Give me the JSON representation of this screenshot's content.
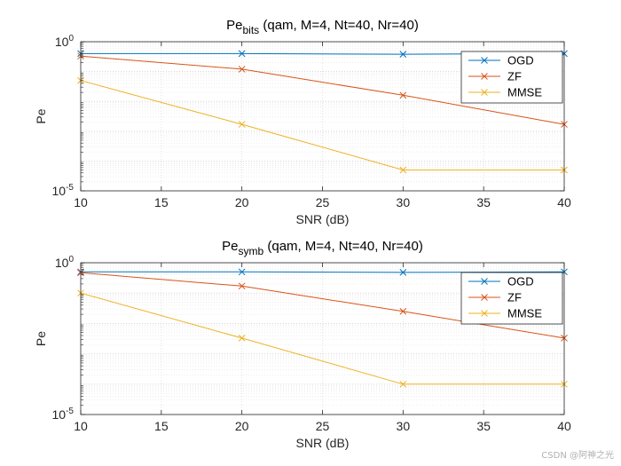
{
  "chart_data": [
    {
      "type": "line",
      "title_main": "Pe",
      "title_sub": "bits",
      "title_rest": "(qam, M=4, Nt=40, Nr=40)",
      "xlabel": "SNR (dB)",
      "ylabel": "Pe",
      "yscale": "log",
      "xlim": [
        10,
        40
      ],
      "ylim_exp": [
        -5,
        0
      ],
      "xticks": [
        "10",
        "15",
        "20",
        "25",
        "30",
        "35",
        "40"
      ],
      "xtick_values": [
        10,
        15,
        20,
        25,
        30,
        35,
        40
      ],
      "yticks": [
        {
          "base": "10",
          "exp": "0"
        },
        {
          "base": "10",
          "exp": "-5"
        }
      ],
      "grid": true,
      "legend_position": "top-right",
      "x": [
        10,
        20,
        30,
        40
      ],
      "series": [
        {
          "name": "OGD",
          "color": "#0072BD",
          "values": [
            0.4,
            0.4,
            0.38,
            0.4
          ]
        },
        {
          "name": "ZF",
          "color": "#D95319",
          "values": [
            0.33,
            0.12,
            0.016,
            0.0017
          ]
        },
        {
          "name": "MMSE",
          "color": "#EDB120",
          "values": [
            0.05,
            0.0017,
            5e-05,
            5e-05
          ]
        }
      ]
    },
    {
      "type": "line",
      "title_main": "Pe",
      "title_sub": "symb",
      "title_rest": "(qam, M=4, Nt=40, Nr=40)",
      "xlabel": "SNR (dB)",
      "ylabel": "Pe",
      "yscale": "log",
      "xlim": [
        10,
        40
      ],
      "ylim_exp": [
        -5,
        0
      ],
      "xticks": [
        "10",
        "15",
        "20",
        "25",
        "30",
        "35",
        "40"
      ],
      "xtick_values": [
        10,
        15,
        20,
        25,
        30,
        35,
        40
      ],
      "yticks": [
        {
          "base": "10",
          "exp": "0"
        },
        {
          "base": "10",
          "exp": "-5"
        }
      ],
      "grid": true,
      "legend_position": "top-right",
      "x": [
        10,
        20,
        30,
        40
      ],
      "series": [
        {
          "name": "OGD",
          "color": "#0072BD",
          "values": [
            0.5,
            0.5,
            0.48,
            0.5
          ]
        },
        {
          "name": "ZF",
          "color": "#D95319",
          "values": [
            0.47,
            0.17,
            0.025,
            0.0033
          ]
        },
        {
          "name": "MMSE",
          "color": "#EDB120",
          "values": [
            0.1,
            0.0033,
            0.0001,
            0.0001
          ]
        }
      ]
    }
  ],
  "watermark": "CSDN @阿神之光"
}
